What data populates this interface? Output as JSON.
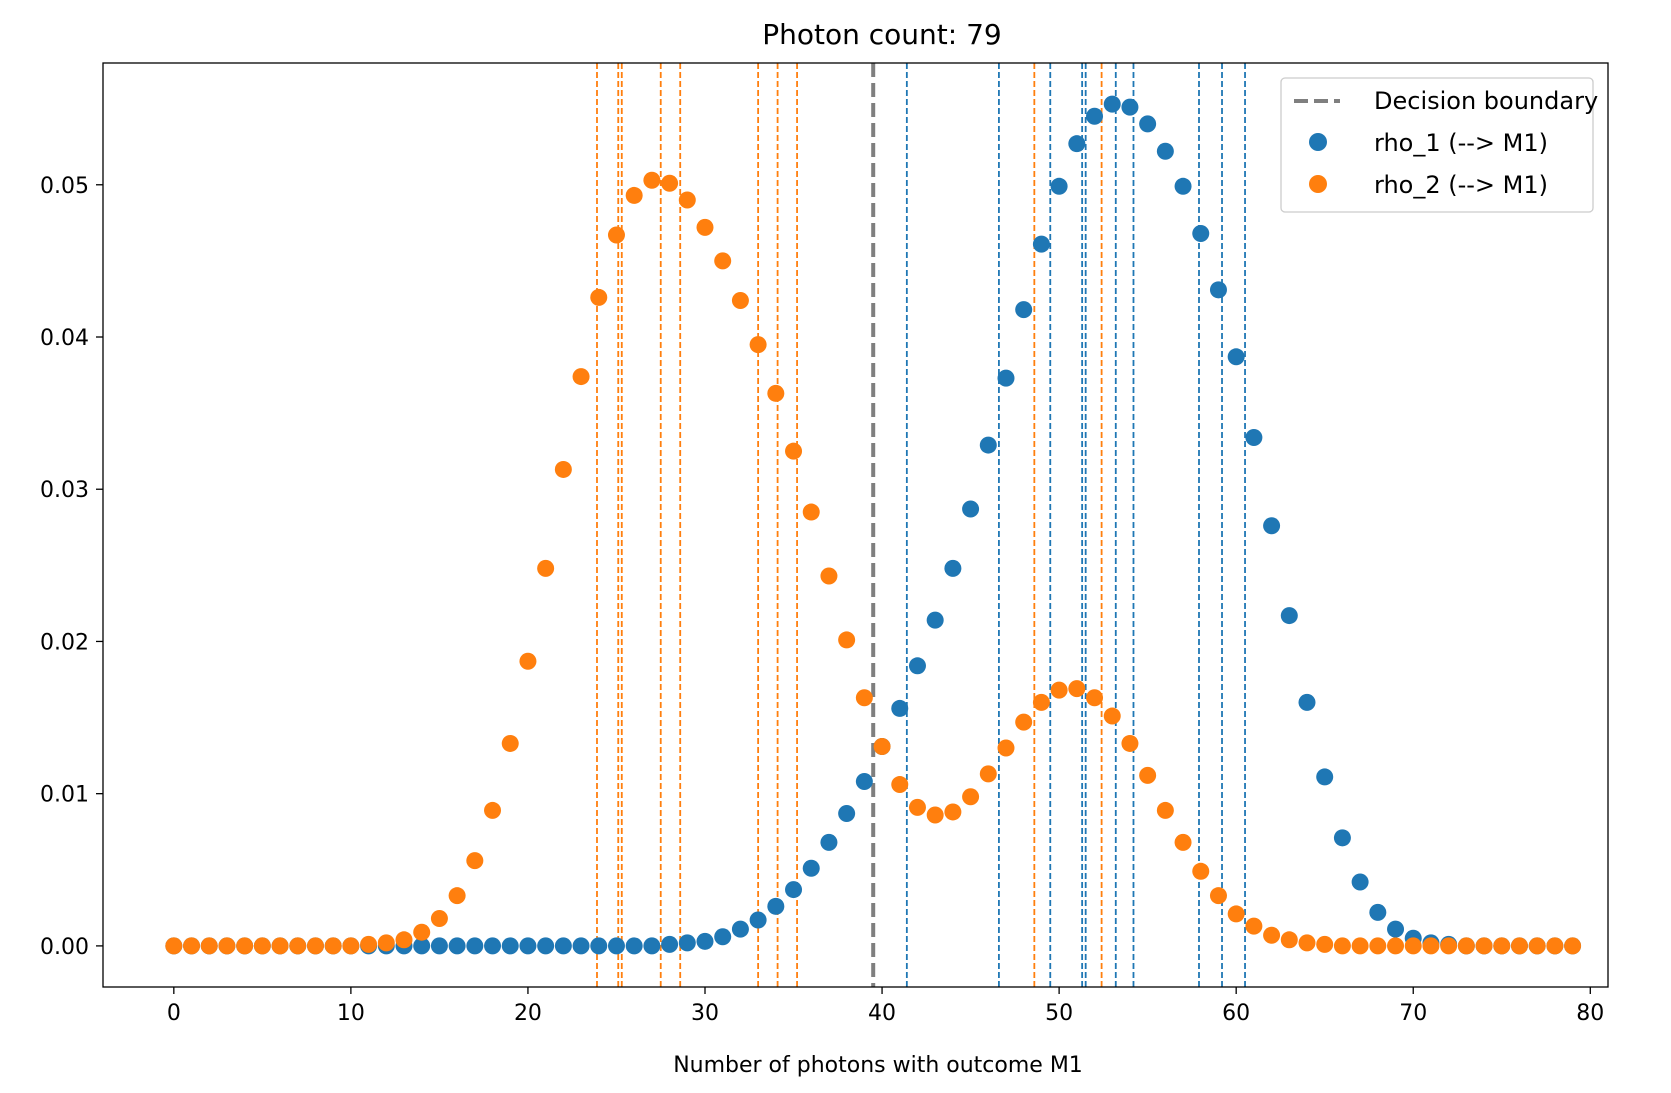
{
  "chart_data": {
    "type": "scatter",
    "title": "Photon count: 79",
    "xlabel": "Number of photons with outcome M1",
    "ylabel": "",
    "xlim": [
      -4,
      81
    ],
    "ylim": [
      -0.0027,
      0.058
    ],
    "xticks": [
      0,
      10,
      20,
      30,
      40,
      50,
      60,
      70,
      80
    ],
    "yticks": [
      0.0,
      0.01,
      0.02,
      0.03,
      0.04,
      0.05
    ],
    "ytick_labels": [
      "0.00",
      "0.01",
      "0.02",
      "0.03",
      "0.04",
      "0.05"
    ],
    "grid": false,
    "legend_position": "top-right",
    "decision_boundary": {
      "name": "Decision boundary",
      "x": 39.5,
      "color": "#7f7f7f"
    },
    "series": [
      {
        "name": "rho_1 (--> M1)",
        "color": "#1f77b4",
        "x": [
          0,
          1,
          2,
          3,
          4,
          5,
          6,
          7,
          8,
          9,
          10,
          11,
          12,
          13,
          14,
          15,
          16,
          17,
          18,
          19,
          20,
          21,
          22,
          23,
          24,
          25,
          26,
          27,
          28,
          29,
          30,
          31,
          32,
          33,
          34,
          35,
          36,
          37,
          38,
          39,
          40,
          41,
          42,
          43,
          44,
          45,
          46,
          47,
          48,
          49,
          50,
          51,
          52,
          53,
          54,
          55,
          56,
          57,
          58,
          59,
          60,
          61,
          62,
          63,
          64,
          65,
          66,
          67,
          68,
          69,
          70,
          71,
          72,
          73,
          74,
          75,
          76,
          77,
          78,
          79
        ],
        "values": [
          0,
          0,
          0,
          0,
          0,
          0,
          0,
          0,
          0,
          0,
          0,
          0,
          0,
          0,
          0,
          0,
          0,
          0,
          0,
          0,
          0,
          0,
          0,
          0,
          0,
          0,
          0,
          0,
          0.0001,
          0.0002,
          0.0003,
          0.0006,
          0.0011,
          0.0017,
          0.0026,
          0.0037,
          0.0051,
          0.0068,
          0.0087,
          0.0108,
          0.0131,
          0.0156,
          0.0184,
          0.0214,
          0.0248,
          0.0287,
          0.0329,
          0.0373,
          0.0418,
          0.0461,
          0.0499,
          0.0527,
          0.0545,
          0.0553,
          0.0551,
          0.054,
          0.0522,
          0.0499,
          0.0468,
          0.0431,
          0.0387,
          0.0334,
          0.0276,
          0.0217,
          0.016,
          0.0111,
          0.0071,
          0.0042,
          0.0022,
          0.0011,
          0.0005,
          0.0002,
          0.0001,
          0,
          0,
          0,
          0,
          0,
          0,
          0
        ]
      },
      {
        "name": "rho_2 (--> M1)",
        "color": "#ff7f0e",
        "x": [
          0,
          1,
          2,
          3,
          4,
          5,
          6,
          7,
          8,
          9,
          10,
          11,
          12,
          13,
          14,
          15,
          16,
          17,
          18,
          19,
          20,
          21,
          22,
          23,
          24,
          25,
          26,
          27,
          28,
          29,
          30,
          31,
          32,
          33,
          34,
          35,
          36,
          37,
          38,
          39,
          40,
          41,
          42,
          43,
          44,
          45,
          46,
          47,
          48,
          49,
          50,
          51,
          52,
          53,
          54,
          55,
          56,
          57,
          58,
          59,
          60,
          61,
          62,
          63,
          64,
          65,
          66,
          67,
          68,
          69,
          70,
          71,
          72,
          73,
          74,
          75,
          76,
          77,
          78,
          79
        ],
        "values": [
          0,
          0,
          0,
          0,
          0,
          0,
          0,
          0,
          0,
          0,
          0,
          0.0001,
          0.0002,
          0.0004,
          0.0009,
          0.0018,
          0.0033,
          0.0056,
          0.0089,
          0.0133,
          0.0187,
          0.0248,
          0.0313,
          0.0374,
          0.0426,
          0.0467,
          0.0493,
          0.0503,
          0.0501,
          0.049,
          0.0472,
          0.045,
          0.0424,
          0.0395,
          0.0363,
          0.0325,
          0.0285,
          0.0243,
          0.0201,
          0.0163,
          0.0131,
          0.0106,
          0.0091,
          0.0086,
          0.0088,
          0.0098,
          0.0113,
          0.013,
          0.0147,
          0.016,
          0.0168,
          0.0169,
          0.0163,
          0.0151,
          0.0133,
          0.0112,
          0.0089,
          0.0068,
          0.0049,
          0.0033,
          0.0021,
          0.0013,
          0.0007,
          0.0004,
          0.0002,
          0.0001,
          0,
          0,
          0,
          0,
          0,
          0,
          0,
          0,
          0,
          0,
          0,
          0,
          0,
          0
        ]
      }
    ],
    "observed_lines": [
      {
        "color": "#1f77b4",
        "x": [
          41.4,
          46.6,
          49.5,
          51.3,
          51.5,
          53.2,
          54.2,
          57.9,
          59.2,
          60.5
        ]
      },
      {
        "color": "#ff7f0e",
        "x": [
          23.9,
          25.1,
          25.3,
          27.5,
          28.6,
          33.0,
          34.1,
          35.2,
          48.6,
          52.4
        ]
      }
    ]
  }
}
